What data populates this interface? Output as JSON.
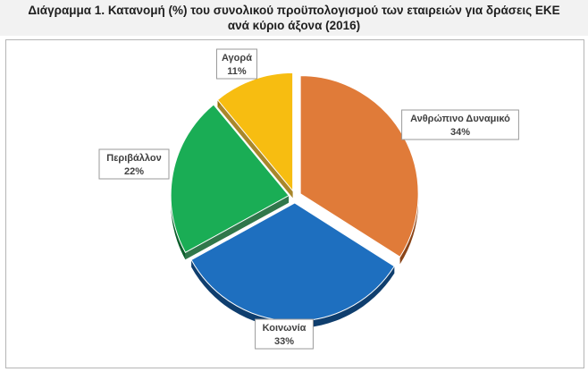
{
  "header": {
    "title": "Διάγραμμα 1. Κατανομή (%) του συνολικού προϋπολογισμού των εταιρειών για δράσεις ΕΚΕ\nανά κύριο άξονα (2016)"
  },
  "chart_data": {
    "type": "pie",
    "title": "Διάγραμμα 1. Κατανομή (%) του συνολικού προϋπολογισμού των εταιρειών για δράσεις ΕΚΕ ανά κύριο άξονα (2016)",
    "unit": "%",
    "legend": "none",
    "slices": [
      {
        "name": "Ανθρώπινο Δυναμικό",
        "value": 34,
        "label": "34%",
        "color": "#e07b39",
        "dark": "#8a4418"
      },
      {
        "name": "Κοινωνία",
        "value": 33,
        "label": "33%",
        "color": "#1e6fbf",
        "dark": "#0f3e6e"
      },
      {
        "name": "Περιβάλλον",
        "value": 22,
        "label": "22%",
        "color": "#1aad55",
        "dark": "#0c5f2c"
      },
      {
        "name": "Αγορά",
        "value": 11,
        "label": "11%",
        "color": "#f7bd11",
        "dark": "#9a7206"
      }
    ]
  }
}
